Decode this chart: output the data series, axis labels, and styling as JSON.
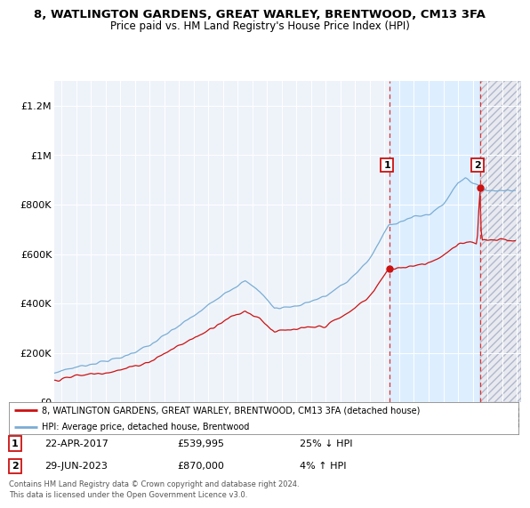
{
  "title1": "8, WATLINGTON GARDENS, GREAT WARLEY, BRENTWOOD, CM13 3FA",
  "title2": "Price paid vs. HM Land Registry's House Price Index (HPI)",
  "ylabel_ticks": [
    "£0",
    "£200K",
    "£400K",
    "£600K",
    "£800K",
    "£1M",
    "£1.2M"
  ],
  "ytick_values": [
    0,
    200000,
    400000,
    600000,
    800000,
    1000000,
    1200000
  ],
  "ylim": [
    0,
    1300000
  ],
  "xlim_start": 1994.5,
  "xlim_end": 2026.3,
  "hpi_color": "#7aadd4",
  "price_color": "#cc1111",
  "dashed_line_color": "#dd3333",
  "highlight_color": "#ddeeff",
  "hatch_color": "#bbbbcc",
  "background_color": "#eef3fa",
  "legend_line1": "8, WATLINGTON GARDENS, GREAT WARLEY, BRENTWOOD, CM13 3FA (detached house)",
  "legend_line2": "HPI: Average price, detached house, Brentwood",
  "annotation1_label": "1",
  "annotation1_date": "22-APR-2017",
  "annotation1_price": "£539,995",
  "annotation1_hpi": "25% ↓ HPI",
  "annotation2_label": "2",
  "annotation2_date": "29-JUN-2023",
  "annotation2_price": "£870,000",
  "annotation2_hpi": "4% ↑ HPI",
  "footer": "Contains HM Land Registry data © Crown copyright and database right 2024.\nThis data is licensed under the Open Government Licence v3.0.",
  "sale1_x": 2017.31,
  "sale1_y": 539995,
  "sale2_x": 2023.49,
  "sale2_y": 870000
}
